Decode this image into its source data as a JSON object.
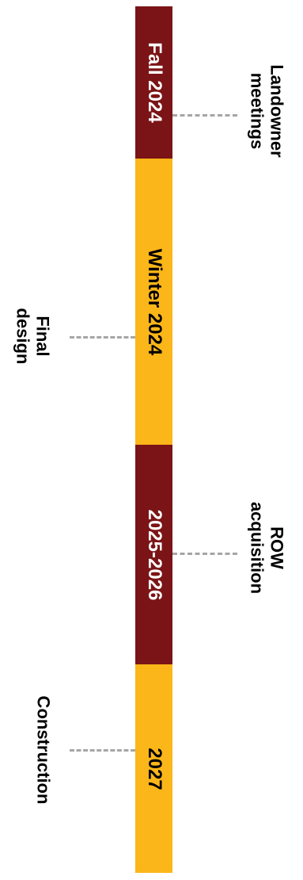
{
  "colors": {
    "dark": "#7b1416",
    "light": "#fbb619",
    "connector": "#a6a6a6"
  },
  "phases": [
    {
      "label": "Fall 2024",
      "color": "#7b1416",
      "text_color": "#ffffff"
    },
    {
      "label": "Winter 2024",
      "color": "#fbb619",
      "text_color": "#000000"
    },
    {
      "label": "2025-2026",
      "color": "#7b1416",
      "text_color": "#ffffff"
    },
    {
      "label": "2027",
      "color": "#fbb619",
      "text_color": "#000000"
    }
  ],
  "milestones": [
    {
      "line1": "Landowner",
      "line2": "meetings"
    },
    {
      "line1": "Final",
      "line2": "design"
    },
    {
      "line1": "ROW",
      "line2": "acquisition"
    },
    {
      "line1": "Construction",
      "line2": ""
    }
  ]
}
